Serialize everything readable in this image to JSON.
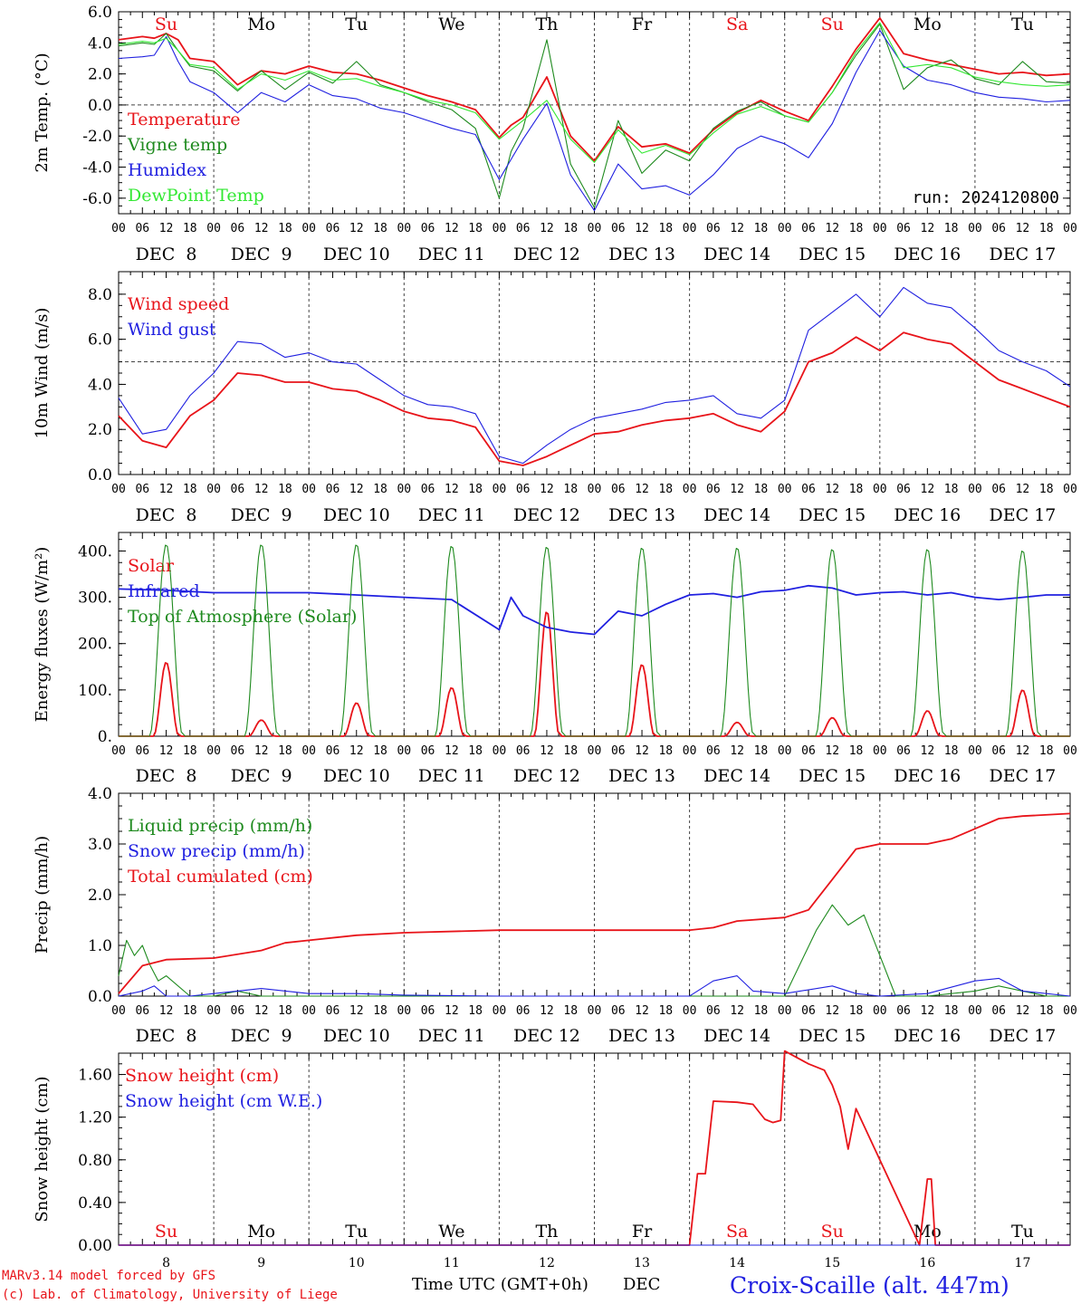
{
  "footer": {
    "model_line1": "MARv3.14 model forced by GFS",
    "model_line2": "(c) Lab. of Climatology, University of Liege",
    "xaxis_title": "Time UTC (GMT+0h)",
    "xaxis_unit": "DEC",
    "station": "Croix-Scaille (alt. 447m)"
  },
  "colors": {
    "red": "#e8141a",
    "green": "#1e8a1e",
    "blue": "#2020e0",
    "lightgreen": "#33e833",
    "grid": "#444444"
  },
  "days": {
    "weekday_labels": [
      "Su",
      "Mo",
      "Tu",
      "We",
      "Th",
      "Fr",
      "Sa",
      "Su",
      "Mo",
      "Tu"
    ],
    "weekend_flags": [
      true,
      false,
      false,
      false,
      false,
      false,
      true,
      true,
      false,
      false
    ],
    "date_labels": [
      "DEC  8",
      "DEC  9",
      "DEC 10",
      "DEC 11",
      "DEC 12",
      "DEC 13",
      "DEC 14",
      "DEC 15",
      "DEC 16",
      "DEC 17"
    ],
    "day_numbers": [
      "8",
      "9",
      "10",
      "11",
      "12",
      "13",
      "14",
      "15",
      "16",
      "17"
    ],
    "hour_ticks": [
      "00",
      "06",
      "12",
      "18"
    ],
    "hour_end": "00"
  },
  "chart_data": [
    {
      "type": "line",
      "ylabel": "2m Temp. (°C)",
      "ylim": [
        -7,
        6
      ],
      "yticks": [
        "6.0",
        "4.0",
        "2.0",
        "0.0",
        "-2.0",
        "-4.0",
        "-6.0"
      ],
      "ytick_values": [
        6,
        4,
        2,
        0,
        -2,
        -4,
        -6
      ],
      "reference_line": 0,
      "annotation": "run: 2024120800",
      "x_hours_from_dec8_00": [
        0,
        6,
        9,
        12,
        15,
        18,
        24,
        30,
        36,
        42,
        48,
        54,
        60,
        66,
        72,
        78,
        84,
        90,
        96,
        99,
        102,
        108,
        114,
        120,
        126,
        132,
        138,
        144,
        150,
        156,
        162,
        168,
        174,
        180,
        186,
        192,
        198,
        204,
        210,
        216,
        222,
        228,
        234,
        240
      ],
      "series": [
        {
          "name": "Temperature",
          "color": "red",
          "values": [
            4.2,
            4.4,
            4.3,
            4.6,
            4.2,
            3.0,
            2.8,
            1.3,
            2.2,
            2.0,
            2.5,
            2.1,
            2.0,
            1.6,
            1.1,
            0.6,
            0.2,
            -0.3,
            -2.1,
            -1.3,
            -0.8,
            1.8,
            -2.0,
            -3.6,
            -1.4,
            -2.7,
            -2.5,
            -3.1,
            -1.6,
            -0.5,
            0.3,
            -0.4,
            -1.0,
            1.2,
            3.6,
            5.6,
            3.3,
            2.9,
            2.6,
            2.3,
            2.0,
            2.1,
            1.9,
            2.0
          ]
        },
        {
          "name": "Vigne temp",
          "color": "green",
          "values": [
            3.8,
            4.0,
            3.9,
            4.6,
            3.5,
            2.5,
            2.2,
            0.9,
            2.2,
            1.0,
            2.1,
            1.4,
            2.8,
            1.3,
            0.8,
            0.2,
            -0.3,
            -1.5,
            -6.0,
            -3.0,
            -1.5,
            4.2,
            -3.8,
            -6.6,
            -1.0,
            -4.4,
            -2.9,
            -3.6,
            -1.5,
            -0.4,
            0.2,
            -0.7,
            -1.1,
            0.8,
            3.2,
            5.2,
            1.0,
            2.4,
            2.9,
            1.7,
            1.3,
            2.8,
            1.5,
            1.4
          ]
        },
        {
          "name": "Humidex",
          "color": "blue",
          "values": [
            3.0,
            3.1,
            3.2,
            4.4,
            2.8,
            1.5,
            0.8,
            -0.5,
            0.8,
            0.2,
            1.3,
            0.6,
            0.4,
            -0.2,
            -0.5,
            -1.0,
            -1.5,
            -1.9,
            -4.8,
            -3.5,
            -2.2,
            0.1,
            -4.5,
            -6.8,
            -3.8,
            -5.4,
            -5.2,
            -5.8,
            -4.5,
            -2.8,
            -2.0,
            -2.5,
            -3.4,
            -1.2,
            2.1,
            4.8,
            2.5,
            1.6,
            1.3,
            0.8,
            0.5,
            0.4,
            0.2,
            0.3
          ]
        },
        {
          "name": "DewPoint Temp",
          "color": "lightgreen",
          "values": [
            3.9,
            4.1,
            4.0,
            4.3,
            3.5,
            2.6,
            2.4,
            1.0,
            2.0,
            1.6,
            2.2,
            1.6,
            1.7,
            1.2,
            0.8,
            0.3,
            0.0,
            -0.5,
            -2.2,
            -1.6,
            -1.0,
            0.3,
            -2.2,
            -3.7,
            -1.6,
            -3.1,
            -2.6,
            -3.2,
            -1.8,
            -0.6,
            -0.1,
            -0.7,
            -1.1,
            0.8,
            3.4,
            5.3,
            2.4,
            2.6,
            2.4,
            1.8,
            1.5,
            1.3,
            1.2,
            1.3
          ]
        }
      ]
    },
    {
      "type": "line",
      "ylabel": "10m Wind (m/s)",
      "ylim": [
        0,
        9
      ],
      "yticks": [
        "8.0",
        "6.0",
        "4.0",
        "2.0",
        "0.0"
      ],
      "ytick_values": [
        8,
        6,
        4,
        2,
        0
      ],
      "reference_line": 5,
      "x_hours_from_dec8_00": [
        0,
        6,
        12,
        18,
        24,
        30,
        36,
        42,
        48,
        54,
        60,
        66,
        72,
        78,
        84,
        90,
        96,
        102,
        108,
        114,
        120,
        126,
        132,
        138,
        144,
        150,
        156,
        162,
        168,
        174,
        180,
        186,
        192,
        198,
        204,
        210,
        216,
        222,
        228,
        234,
        240
      ],
      "series": [
        {
          "name": "Wind speed",
          "color": "red",
          "values": [
            2.6,
            1.5,
            1.2,
            2.6,
            3.3,
            4.5,
            4.4,
            4.1,
            4.1,
            3.8,
            3.7,
            3.3,
            2.8,
            2.5,
            2.4,
            2.1,
            0.6,
            0.4,
            0.8,
            1.3,
            1.8,
            1.9,
            2.2,
            2.4,
            2.5,
            2.7,
            2.2,
            1.9,
            2.8,
            5.0,
            5.4,
            6.1,
            5.5,
            6.3,
            6.0,
            5.8,
            5.0,
            4.2,
            3.8,
            3.4,
            3.0
          ]
        },
        {
          "name": "Wind gust",
          "color": "blue",
          "values": [
            3.4,
            1.8,
            2.0,
            3.5,
            4.5,
            5.9,
            5.8,
            5.2,
            5.4,
            5.0,
            4.9,
            4.2,
            3.5,
            3.1,
            3.0,
            2.7,
            0.8,
            0.5,
            1.3,
            2.0,
            2.5,
            2.7,
            2.9,
            3.2,
            3.3,
            3.5,
            2.7,
            2.5,
            3.3,
            6.4,
            7.2,
            8.0,
            7.0,
            8.3,
            7.6,
            7.4,
            6.5,
            5.5,
            5.0,
            4.6,
            3.9
          ]
        }
      ]
    },
    {
      "type": "line",
      "ylabel": "Energy fluxes (W/m²)",
      "ylim": [
        0,
        440
      ],
      "yticks": [
        "400.",
        "300.",
        "200.",
        "100.",
        "0."
      ],
      "ytick_values": [
        400,
        300,
        200,
        100,
        0
      ],
      "series": [
        {
          "name": "Solar",
          "color": "red",
          "peaks": [
            160,
            35,
            72,
            105,
            270,
            155,
            30,
            40,
            55,
            100
          ]
        },
        {
          "name": "Infrared",
          "color": "blue",
          "x_hours_from_dec8_00": [
            0,
            12,
            24,
            36,
            48,
            60,
            72,
            84,
            96,
            99,
            102,
            108,
            114,
            120,
            126,
            132,
            138,
            144,
            150,
            156,
            162,
            168,
            174,
            180,
            186,
            192,
            198,
            204,
            210,
            216,
            222,
            228,
            234,
            240
          ],
          "values": [
            318,
            315,
            310,
            310,
            310,
            305,
            300,
            295,
            230,
            300,
            260,
            235,
            225,
            220,
            270,
            260,
            285,
            305,
            308,
            300,
            312,
            315,
            325,
            320,
            305,
            310,
            312,
            305,
            310,
            300,
            295,
            300,
            305,
            305
          ]
        },
        {
          "name": "Top of Atmosphere (Solar)",
          "color": "green",
          "peaks": [
            415,
            415,
            415,
            412,
            410,
            408,
            408,
            405,
            405,
            402
          ]
        }
      ]
    },
    {
      "type": "line",
      "ylabel": "Precip (mm/h)",
      "ylim": [
        0,
        4
      ],
      "yticks": [
        "4.0",
        "3.0",
        "2.0",
        "1.0",
        "0.0"
      ],
      "ytick_values": [
        4,
        3,
        2,
        1,
        0
      ],
      "series": [
        {
          "name": "Liquid precip (mm/h)",
          "color": "green",
          "x_hours_from_dec8_00": [
            0,
            2,
            4,
            6,
            8,
            10,
            12,
            18,
            24,
            30,
            36,
            48,
            60,
            72,
            84,
            96,
            120,
            144,
            168,
            176,
            180,
            184,
            188,
            192,
            196,
            204,
            216,
            222,
            228,
            234,
            240
          ],
          "values": [
            0.4,
            1.1,
            0.8,
            1.0,
            0.6,
            0.3,
            0.4,
            0.0,
            0.0,
            0.1,
            0.0,
            0.0,
            0.0,
            0.0,
            0.0,
            0.0,
            0.0,
            0.0,
            0.0,
            1.3,
            1.8,
            1.4,
            1.6,
            0.8,
            0.0,
            0.0,
            0.1,
            0.2,
            0.1,
            0.0,
            0.0
          ]
        },
        {
          "name": "Snow precip (mm/h)",
          "color": "blue",
          "x_hours_from_dec8_00": [
            0,
            6,
            9,
            12,
            18,
            24,
            30,
            36,
            48,
            60,
            72,
            96,
            120,
            144,
            150,
            156,
            160,
            168,
            180,
            186,
            192,
            204,
            216,
            222,
            228,
            240
          ],
          "values": [
            0.0,
            0.1,
            0.2,
            0.0,
            0.0,
            0.05,
            0.1,
            0.15,
            0.05,
            0.05,
            0.02,
            0.0,
            0.0,
            0.0,
            0.3,
            0.4,
            0.1,
            0.05,
            0.2,
            0.05,
            0.0,
            0.05,
            0.3,
            0.35,
            0.1,
            0.0
          ]
        },
        {
          "name": "Total cumulated (cm)",
          "color": "red",
          "x_hours_from_dec8_00": [
            0,
            6,
            12,
            24,
            36,
            42,
            48,
            60,
            72,
            96,
            120,
            144,
            150,
            156,
            168,
            174,
            180,
            186,
            192,
            204,
            210,
            216,
            222,
            228,
            240
          ],
          "values": [
            0.05,
            0.6,
            0.72,
            0.75,
            0.9,
            1.05,
            1.1,
            1.2,
            1.25,
            1.3,
            1.3,
            1.3,
            1.35,
            1.48,
            1.55,
            1.7,
            2.3,
            2.9,
            3.0,
            3.0,
            3.1,
            3.3,
            3.5,
            3.55,
            3.6
          ]
        }
      ]
    },
    {
      "type": "line",
      "ylabel": "Snow height (cm)",
      "ylim": [
        0,
        1.8
      ],
      "yticks": [
        "1.60",
        "1.20",
        "0.80",
        "0.40",
        "0.00"
      ],
      "ytick_values": [
        1.6,
        1.2,
        0.8,
        0.4,
        0
      ],
      "series": [
        {
          "name": "Snow height (cm)",
          "color": "red",
          "x_hours_from_dec8_00": [
            0,
            144,
            146,
            148,
            150,
            156,
            160,
            163,
            165,
            167,
            168,
            174,
            178,
            180,
            182,
            184,
            186,
            202,
            204,
            205,
            206,
            240
          ],
          "values": [
            0,
            0,
            0.67,
            0.67,
            1.35,
            1.34,
            1.32,
            1.18,
            1.15,
            1.17,
            1.82,
            1.7,
            1.64,
            1.5,
            1.3,
            0.9,
            1.28,
            0,
            0.62,
            0.62,
            0,
            0
          ]
        },
        {
          "name": "Snow height (cm W.E.)",
          "color": "blue",
          "x_hours_from_dec8_00": [
            0,
            240
          ],
          "values": [
            0,
            0
          ]
        }
      ]
    }
  ]
}
